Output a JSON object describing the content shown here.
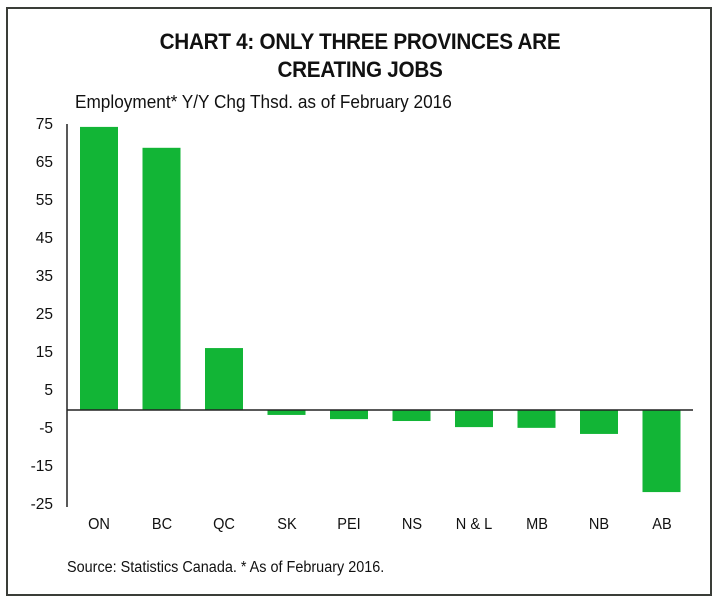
{
  "chart_data": {
    "type": "bar",
    "title": "CHART 4: ONLY THREE PROVINCES ARE CREATING JOBS",
    "title_lines": [
      "CHART 4: ONLY THREE PROVINCES ARE",
      "CREATING JOBS"
    ],
    "subtitle": "Employment* Y/Y Chg Thsd. as of February 2016",
    "xlabel": "",
    "ylabel": "Employment* Y/Y Chg Thsd.",
    "categories": [
      "ON",
      "BC",
      "QC",
      "SK",
      "PEI",
      "NS",
      "N & L",
      "MB",
      "NB",
      "AB"
    ],
    "values": [
      74.5,
      69,
      16.3,
      -1.3,
      -2.4,
      -2.9,
      -4.5,
      -4.7,
      -6.3,
      -21.6
    ],
    "ylim": [
      -25,
      75
    ],
    "yticks": [
      75,
      65,
      55,
      45,
      35,
      25,
      15,
      5,
      -5,
      -15,
      -25
    ],
    "grid": false,
    "legend": null,
    "bar_color": "#12B536",
    "source": "Source: Statistics Canada. * As of February 2016."
  }
}
